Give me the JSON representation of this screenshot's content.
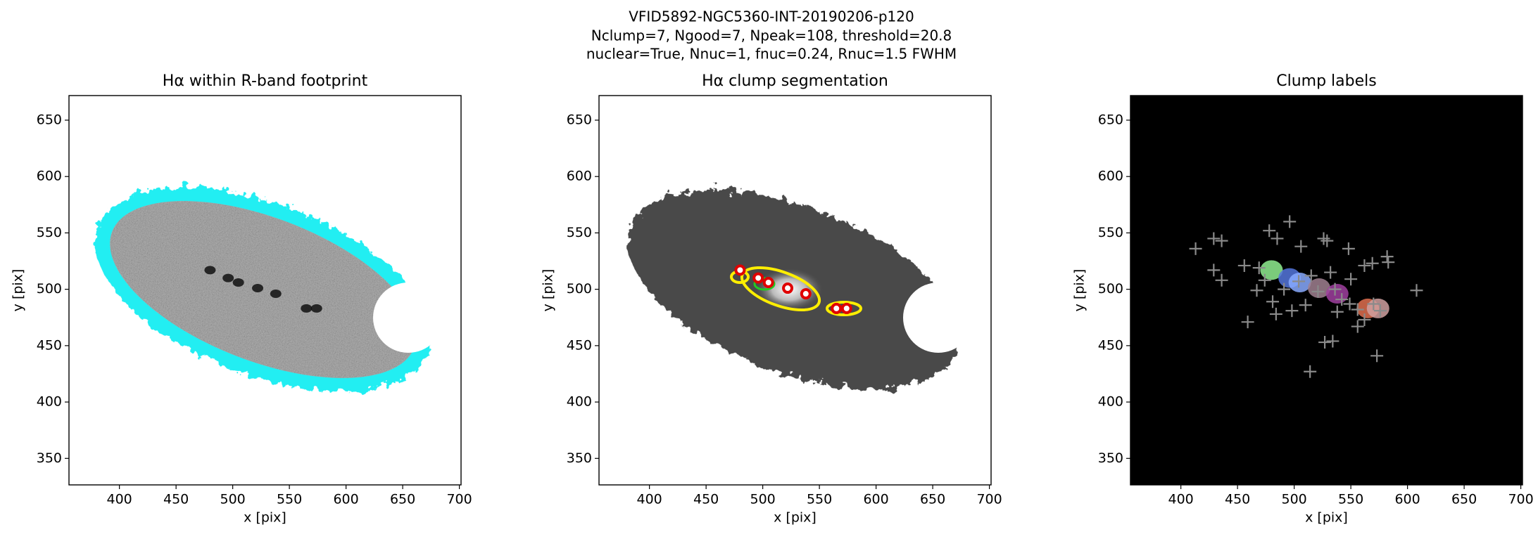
{
  "title_lines": [
    "VFID5892-NGC5360-INT-20190206-p120",
    "Nclump=7, Ngood=7, Npeak=108, threshold=20.8",
    "nuclear=True, Nnuc=1, fnuc=0.24, Rnuc=1.5 FWHM"
  ],
  "chart_data": [
    {
      "type": "image",
      "title": "Hα within R-band footprint",
      "xlabel": "x [pix]",
      "ylabel": "y [pix]",
      "xlim": [
        355.5,
        701.5
      ],
      "ylim": [
        326.5,
        671.8
      ],
      "xticks": [
        400,
        450,
        500,
        550,
        600,
        650,
        700
      ],
      "yticks": [
        350,
        400,
        450,
        500,
        550,
        600,
        650
      ],
      "series": [
        {
          "color": "#111111",
          "x": [
            480,
            496,
            505,
            522,
            538,
            565,
            574
          ],
          "y": [
            517,
            510,
            506,
            501,
            496,
            483,
            483
          ]
        }
      ]
    },
    {
      "type": "scatter",
      "title": "Hα clump segmentation",
      "xlabel": "x [pix]",
      "ylabel": "y [pix]",
      "xlim": [
        355.5,
        701.5
      ],
      "ylim": [
        326.5,
        671.8
      ],
      "xticks": [
        400,
        450,
        500,
        550,
        600,
        650,
        700
      ],
      "yticks": [
        350,
        400,
        450,
        500,
        550,
        600,
        650
      ],
      "series": [
        {
          "color": "#e00000",
          "x": [
            480,
            496,
            505,
            522,
            538,
            565,
            574
          ],
          "y": [
            517,
            510,
            506,
            501,
            496,
            483,
            483
          ]
        }
      ]
    },
    {
      "type": "labels",
      "title": "Clump labels",
      "xlabel": "x [pix]",
      "ylabel": "y [pix]",
      "xlim": [
        355.5,
        701.5
      ],
      "ylim": [
        326.5,
        671.8
      ],
      "xticks": [
        400,
        450,
        500,
        550,
        600,
        650,
        700
      ],
      "yticks": [
        350,
        400,
        450,
        500,
        550,
        600,
        650
      ],
      "series": [
        {
          "colors": [
            "#90ee90",
            "#5577dd",
            "#88aaff",
            "#a08090",
            "#a040a0",
            "#e07050",
            "#d0a0a0"
          ],
          "x": [
            480,
            496,
            505,
            522,
            538,
            565,
            574
          ],
          "y": [
            517,
            510,
            506,
            501,
            496,
            483,
            483
          ]
        },
        {
          "color": "#8a8a8a",
          "x": [
            413,
            429,
            436,
            429,
            436,
            456,
            459,
            469,
            467,
            478,
            485,
            496,
            506,
            526,
            529,
            548,
            562,
            569,
            583,
            582,
            608,
            573,
            514,
            527,
            534,
            556,
            562,
            484,
            481,
            491,
            504,
            515,
            521,
            536,
            542,
            549,
            556,
            538,
            510,
            498,
            532,
            550,
            570,
            576,
            474
          ],
          "y": [
            536,
            545,
            543,
            517,
            508,
            521,
            471,
            519,
            499,
            552,
            545,
            560,
            538,
            545,
            543,
            536,
            521,
            523,
            524,
            529,
            499,
            441,
            427,
            453,
            454,
            467,
            473,
            478,
            489,
            500,
            507,
            512,
            498,
            500,
            491,
            487,
            482,
            480,
            486,
            481,
            515,
            509,
            487,
            481,
            508
          ]
        }
      ]
    }
  ]
}
